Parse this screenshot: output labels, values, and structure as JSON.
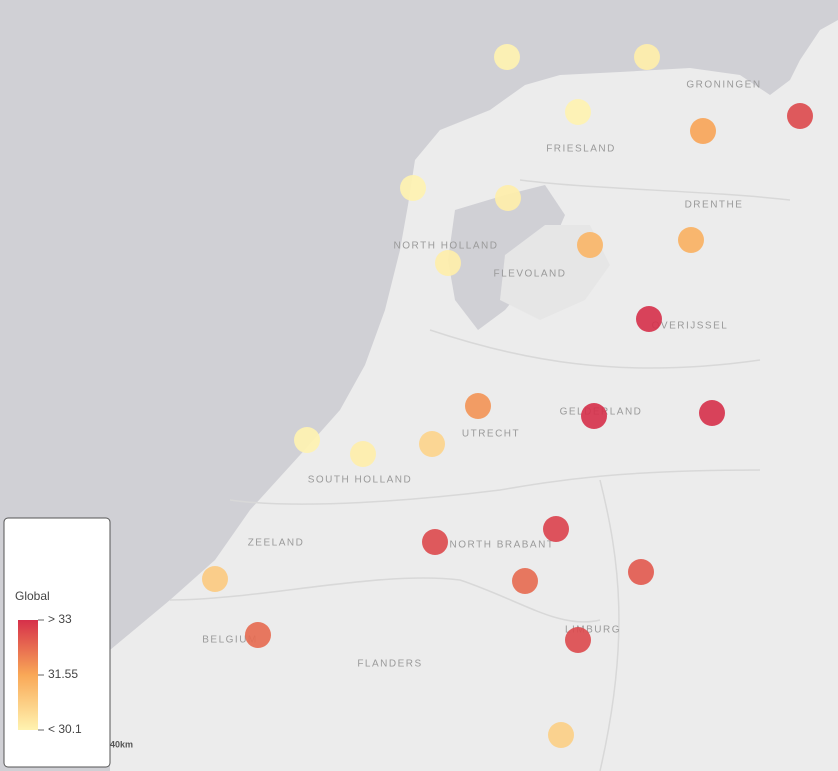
{
  "map": {
    "legend": {
      "title": "Global",
      "ticks": [
        {
          "value": 33,
          "label": "> 33"
        },
        31.55,
        {
          "value": 30.1,
          "label": "< 30.1"
        }
      ],
      "colors": [
        "#fff3b0",
        "#f9a857",
        "#d6304a"
      ]
    },
    "points": {
      "values": [
        30.1,
        30.2,
        30.1,
        31.6,
        32.7,
        30.1,
        30.2,
        31.3,
        31.4,
        30.2,
        33.2,
        31.8,
        33.3,
        33.1,
        30.1,
        30.2,
        30.7,
        32.8,
        32.7,
        32.5,
        32.3,
        30.9,
        32.3,
        32.7,
        30.8
      ]
    },
    "regions": [
      "GRONINGEN",
      "FRIESLAND",
      "DRENTHE",
      "NORTH HOLLAND",
      "FLEVOLAND",
      "OVERIJSSEL",
      "GELDERLAND",
      "UTRECHT",
      "SOUTH HOLLAND",
      "ZEELAND",
      "NORTH BRABANT",
      "LIMBURG",
      "BELGIUM",
      "FLANDERS"
    ],
    "scale_label": "40km"
  }
}
